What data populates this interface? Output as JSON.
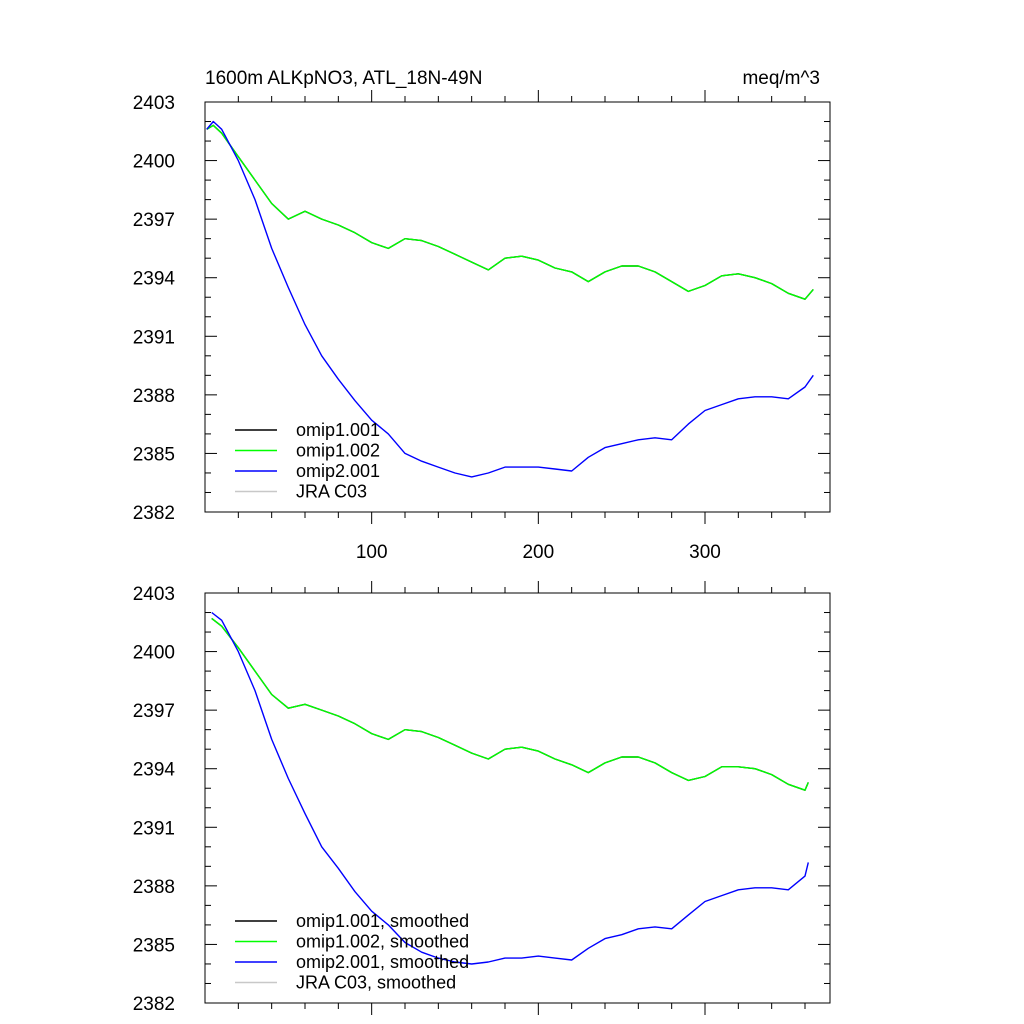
{
  "figure": {
    "title_left": "1600m ALKpNO3, ATL_18N-49N",
    "title_right": "meq/m^3"
  },
  "chart_data": [
    {
      "type": "line",
      "xlabel": "",
      "ylabel": "",
      "xlim": [
        0,
        375
      ],
      "ylim": [
        2382,
        2403
      ],
      "x_ticks": [
        100,
        200,
        300
      ],
      "y_ticks": [
        2382,
        2385,
        2388,
        2391,
        2394,
        2397,
        2400,
        2403
      ],
      "legend_position": "bottom-left",
      "series": [
        {
          "name": "omip1.001",
          "color": "#000000",
          "x": [
            1,
            5,
            10,
            20,
            30,
            40,
            50,
            60,
            70,
            80,
            90,
            100,
            110,
            120,
            130,
            140,
            150,
            160,
            170,
            180,
            190,
            200,
            210,
            220,
            230,
            240,
            250,
            260,
            270,
            280,
            290,
            300,
            310,
            320,
            330,
            340,
            350,
            360,
            365
          ],
          "y": [
            2401.6,
            2401.8,
            2401.4,
            2400.2,
            2399.0,
            2397.8,
            2397.0,
            2397.4,
            2397.0,
            2396.7,
            2396.3,
            2395.8,
            2395.5,
            2396.0,
            2395.9,
            2395.6,
            2395.2,
            2394.8,
            2394.4,
            2395.0,
            2395.1,
            2394.9,
            2394.5,
            2394.3,
            2393.8,
            2394.3,
            2394.6,
            2394.6,
            2394.3,
            2393.8,
            2393.3,
            2393.6,
            2394.1,
            2394.2,
            2394.0,
            2393.7,
            2393.2,
            2392.9,
            2393.4
          ]
        },
        {
          "name": "omip1.002",
          "color": "#00ff00",
          "x": [
            1,
            5,
            10,
            20,
            30,
            40,
            50,
            60,
            70,
            80,
            90,
            100,
            110,
            120,
            130,
            140,
            150,
            160,
            170,
            180,
            190,
            200,
            210,
            220,
            230,
            240,
            250,
            260,
            270,
            280,
            290,
            300,
            310,
            320,
            330,
            340,
            350,
            360,
            365
          ],
          "y": [
            2401.6,
            2401.8,
            2401.4,
            2400.2,
            2399.0,
            2397.8,
            2397.0,
            2397.4,
            2397.0,
            2396.7,
            2396.3,
            2395.8,
            2395.5,
            2396.0,
            2395.9,
            2395.6,
            2395.2,
            2394.8,
            2394.4,
            2395.0,
            2395.1,
            2394.9,
            2394.5,
            2394.3,
            2393.8,
            2394.3,
            2394.6,
            2394.6,
            2394.3,
            2393.8,
            2393.3,
            2393.6,
            2394.1,
            2394.2,
            2394.0,
            2393.7,
            2393.2,
            2392.9,
            2393.4
          ]
        },
        {
          "name": "omip2.001",
          "color": "#0000ff",
          "x": [
            1,
            5,
            10,
            20,
            30,
            40,
            50,
            60,
            70,
            80,
            90,
            100,
            110,
            120,
            130,
            140,
            150,
            160,
            170,
            180,
            190,
            200,
            210,
            220,
            230,
            240,
            250,
            260,
            270,
            280,
            290,
            300,
            310,
            320,
            330,
            340,
            350,
            360,
            365
          ],
          "y": [
            2401.6,
            2402.0,
            2401.6,
            2400.0,
            2398.0,
            2395.5,
            2393.5,
            2391.6,
            2390.0,
            2388.8,
            2387.7,
            2386.7,
            2386.0,
            2385.0,
            2384.6,
            2384.3,
            2384.0,
            2383.8,
            2384.0,
            2384.3,
            2384.3,
            2384.3,
            2384.2,
            2384.1,
            2384.8,
            2385.3,
            2385.5,
            2385.7,
            2385.8,
            2385.7,
            2386.5,
            2387.2,
            2387.5,
            2387.8,
            2387.9,
            2387.9,
            2387.8,
            2388.4,
            2389.0
          ]
        },
        {
          "name": "JRA C03",
          "color": "#c8c8c8",
          "x": [],
          "y": []
        }
      ]
    },
    {
      "type": "line",
      "xlabel": "",
      "ylabel": "",
      "xlim": [
        0,
        375
      ],
      "ylim": [
        2382,
        2403
      ],
      "x_ticks": [
        100,
        200,
        300
      ],
      "y_ticks": [
        2382,
        2385,
        2388,
        2391,
        2394,
        2397,
        2400,
        2403
      ],
      "legend_position": "bottom-left",
      "series": [
        {
          "name": "omip1.001, smoothed",
          "color": "#000000",
          "x": [
            4,
            10,
            20,
            30,
            40,
            50,
            60,
            70,
            80,
            90,
            100,
            110,
            120,
            130,
            140,
            150,
            160,
            170,
            180,
            190,
            200,
            210,
            220,
            230,
            240,
            250,
            260,
            270,
            280,
            290,
            300,
            310,
            320,
            330,
            340,
            350,
            360,
            362
          ],
          "y": [
            2401.7,
            2401.3,
            2400.2,
            2399.0,
            2397.8,
            2397.1,
            2397.3,
            2397.0,
            2396.7,
            2396.3,
            2395.8,
            2395.5,
            2396.0,
            2395.9,
            2395.6,
            2395.2,
            2394.8,
            2394.5,
            2395.0,
            2395.1,
            2394.9,
            2394.5,
            2394.2,
            2393.8,
            2394.3,
            2394.6,
            2394.6,
            2394.3,
            2393.8,
            2393.4,
            2393.6,
            2394.1,
            2394.1,
            2394.0,
            2393.7,
            2393.2,
            2392.9,
            2393.3
          ]
        },
        {
          "name": "omip1.002, smoothed",
          "color": "#00ff00",
          "x": [
            4,
            10,
            20,
            30,
            40,
            50,
            60,
            70,
            80,
            90,
            100,
            110,
            120,
            130,
            140,
            150,
            160,
            170,
            180,
            190,
            200,
            210,
            220,
            230,
            240,
            250,
            260,
            270,
            280,
            290,
            300,
            310,
            320,
            330,
            340,
            350,
            360,
            362
          ],
          "y": [
            2401.7,
            2401.3,
            2400.2,
            2399.0,
            2397.8,
            2397.1,
            2397.3,
            2397.0,
            2396.7,
            2396.3,
            2395.8,
            2395.5,
            2396.0,
            2395.9,
            2395.6,
            2395.2,
            2394.8,
            2394.5,
            2395.0,
            2395.1,
            2394.9,
            2394.5,
            2394.2,
            2393.8,
            2394.3,
            2394.6,
            2394.6,
            2394.3,
            2393.8,
            2393.4,
            2393.6,
            2394.1,
            2394.1,
            2394.0,
            2393.7,
            2393.2,
            2392.9,
            2393.3
          ]
        },
        {
          "name": "omip2.001, smoothed",
          "color": "#0000ff",
          "x": [
            4,
            10,
            20,
            30,
            40,
            50,
            60,
            70,
            80,
            90,
            100,
            110,
            120,
            130,
            140,
            150,
            160,
            170,
            180,
            190,
            200,
            210,
            220,
            230,
            240,
            250,
            260,
            270,
            280,
            290,
            300,
            310,
            320,
            330,
            340,
            350,
            360,
            362
          ],
          "y": [
            2402.0,
            2401.6,
            2400.0,
            2398.0,
            2395.5,
            2393.5,
            2391.7,
            2390.0,
            2388.9,
            2387.7,
            2386.7,
            2386.0,
            2385.1,
            2384.6,
            2384.3,
            2384.1,
            2384.0,
            2384.1,
            2384.3,
            2384.3,
            2384.4,
            2384.3,
            2384.2,
            2384.8,
            2385.3,
            2385.5,
            2385.8,
            2385.9,
            2385.8,
            2386.5,
            2387.2,
            2387.5,
            2387.8,
            2387.9,
            2387.9,
            2387.8,
            2388.5,
            2389.2
          ]
        },
        {
          "name": "JRA C03, smoothed",
          "color": "#c8c8c8",
          "x": [],
          "y": []
        }
      ]
    }
  ]
}
